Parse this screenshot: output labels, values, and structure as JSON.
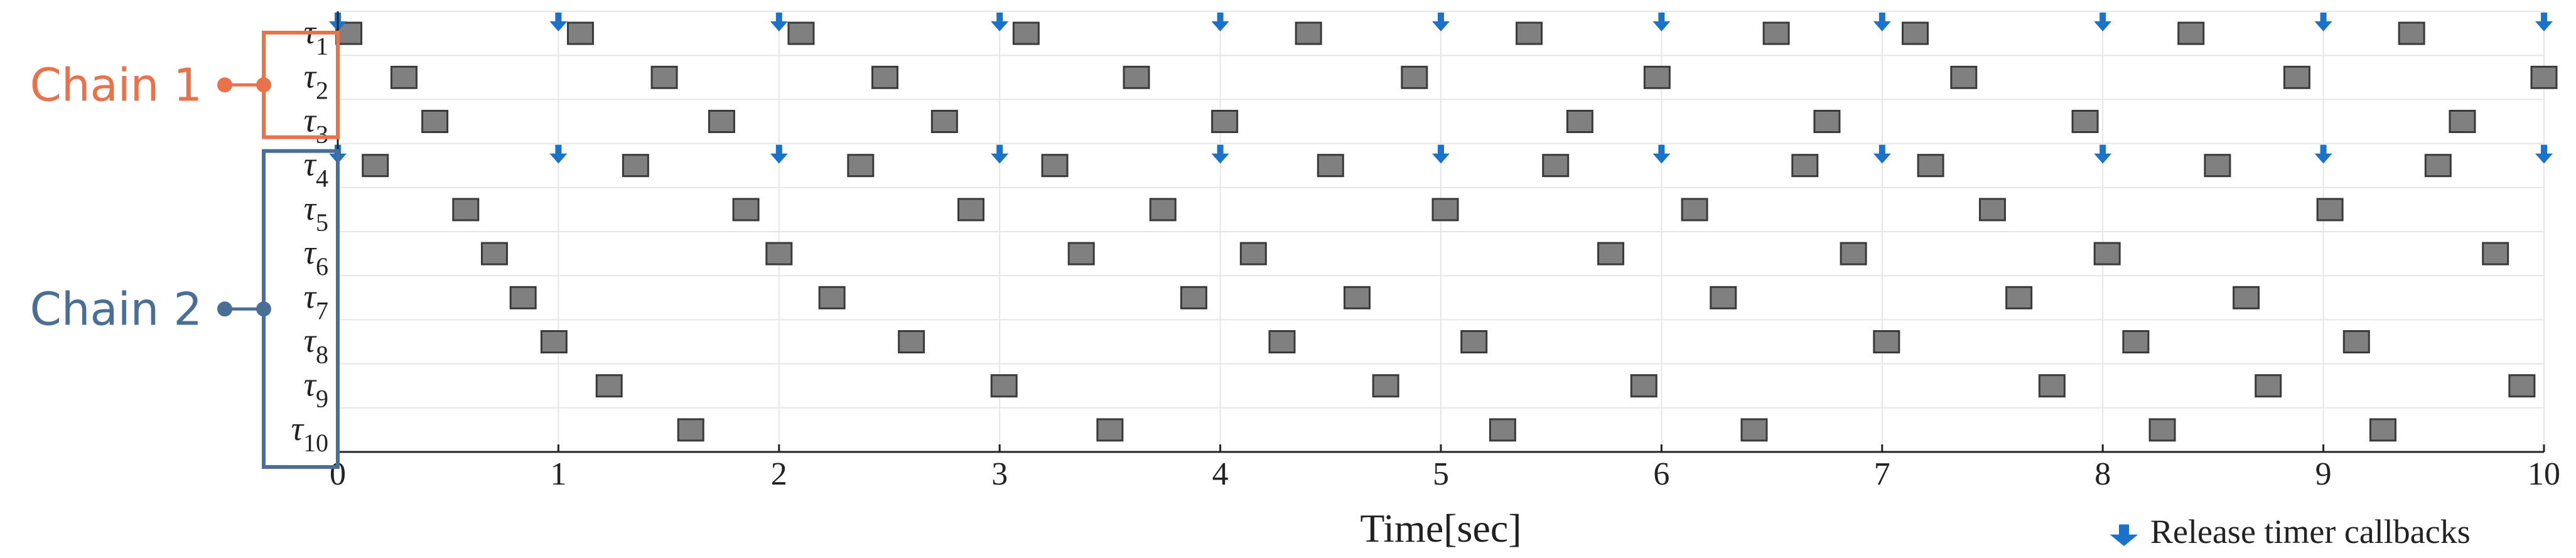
{
  "chart_data": {
    "type": "timeline",
    "xlabel": "Time[sec]",
    "xlim": [
      0,
      10
    ],
    "xticks": [
      "0",
      "1",
      "2",
      "3",
      "4",
      "5",
      "6",
      "7",
      "8",
      "9",
      "10"
    ],
    "legend": {
      "label": "Release timer callbacks",
      "position": "bottom-right",
      "icon": "down-arrow-icon"
    },
    "colors": {
      "block_fill": "#808080",
      "block_stroke": "#3a3a3a",
      "arrow": "#1a73c8",
      "chain1": "#e8734a",
      "chain2": "#4a6f96",
      "grid": "#e6e6e6"
    },
    "rows": [
      {
        "label": "τ",
        "sub": "1",
        "timer": true,
        "releases": [
          0,
          1,
          2,
          3,
          4,
          5,
          6,
          7,
          8,
          9,
          10
        ],
        "blocks": [
          0.05,
          1.1,
          2.1,
          3.12,
          4.4,
          5.4,
          6.52,
          7.15,
          8.4,
          9.4
        ]
      },
      {
        "label": "τ",
        "sub": "2",
        "timer": false,
        "releases": [],
        "blocks": [
          0.3,
          1.48,
          2.48,
          3.62,
          4.88,
          5.98,
          7.37,
          8.88,
          10.0
        ]
      },
      {
        "label": "τ",
        "sub": "3",
        "timer": false,
        "releases": [],
        "blocks": [
          0.44,
          1.74,
          2.75,
          4.02,
          5.63,
          6.75,
          7.92,
          9.63
        ]
      },
      {
        "label": "τ",
        "sub": "4",
        "timer": true,
        "releases": [
          0,
          1,
          2,
          3,
          4,
          5,
          6,
          7,
          8,
          9,
          10
        ],
        "blocks": [
          0.17,
          1.35,
          2.37,
          3.25,
          4.5,
          5.52,
          6.65,
          7.22,
          8.52,
          9.52
        ]
      },
      {
        "label": "τ",
        "sub": "5",
        "timer": false,
        "releases": [],
        "blocks": [
          0.58,
          1.85,
          2.87,
          3.74,
          5.02,
          6.15,
          7.5,
          9.03
        ]
      },
      {
        "label": "τ",
        "sub": "6",
        "timer": false,
        "releases": [],
        "blocks": [
          0.71,
          2.0,
          3.37,
          4.15,
          5.77,
          6.87,
          8.02,
          9.78
        ]
      },
      {
        "label": "τ",
        "sub": "7",
        "timer": false,
        "releases": [],
        "blocks": [
          0.84,
          2.24,
          3.88,
          4.62,
          6.28,
          7.62,
          8.65
        ]
      },
      {
        "label": "τ",
        "sub": "8",
        "timer": false,
        "releases": [],
        "blocks": [
          0.98,
          2.6,
          4.28,
          5.15,
          7.02,
          8.15,
          9.15
        ]
      },
      {
        "label": "τ",
        "sub": "9",
        "timer": false,
        "releases": [],
        "blocks": [
          1.23,
          3.02,
          4.75,
          5.92,
          7.77,
          8.75,
          9.9
        ]
      },
      {
        "label": "τ",
        "sub": "10",
        "timer": false,
        "releases": [],
        "blocks": [
          1.6,
          3.5,
          5.28,
          6.42,
          8.27,
          9.27
        ]
      }
    ],
    "chains": [
      {
        "name": "Chain 1",
        "rows": [
          0,
          2
        ],
        "color": "#e8734a"
      },
      {
        "name": "Chain 2",
        "rows": [
          3,
          9
        ],
        "color": "#4a6f96"
      }
    ]
  }
}
